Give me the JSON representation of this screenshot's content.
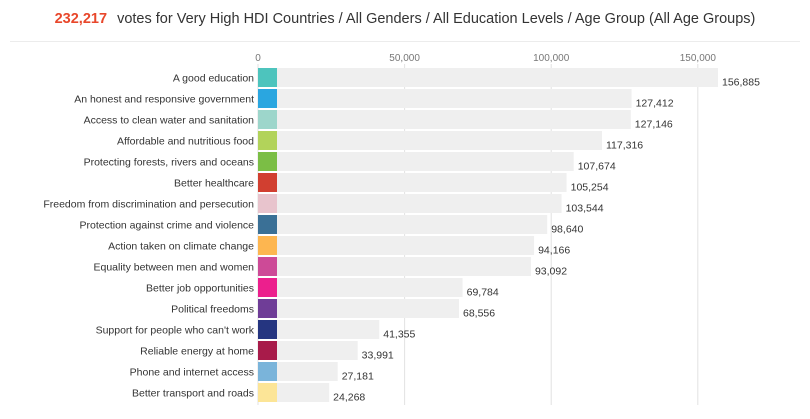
{
  "header": {
    "total_votes": "232,217",
    "caption": "votes for Very High HDI Countries / All Genders / All Education Levels / Age Group (All Age Groups)"
  },
  "chart_data": {
    "type": "bar",
    "orientation": "horizontal",
    "xlim": [
      0,
      156885
    ],
    "ticks": [
      0,
      50000,
      100000,
      150000
    ],
    "tick_labels": [
      "0",
      "50,000",
      "100,000",
      "150,000"
    ],
    "grid": true,
    "categories": [
      "A good education",
      "An honest and responsive government",
      "Access to clean water and sanitation",
      "Affordable and nutritious food",
      "Protecting forests, rivers and oceans",
      "Better healthcare",
      "Freedom from discrimination and persecution",
      "Protection against crime and violence",
      "Action taken on climate change",
      "Equality between men and women",
      "Better job opportunities",
      "Political freedoms",
      "Support for people who can't work",
      "Reliable energy at home",
      "Phone and internet access",
      "Better transport and roads"
    ],
    "values": [
      156885,
      127412,
      127146,
      117316,
      107674,
      105254,
      103544,
      98640,
      94166,
      93092,
      69784,
      68556,
      41355,
      33991,
      27181,
      24268
    ],
    "value_labels": [
      "156,885",
      "127,412",
      "127,146",
      "117,316",
      "107,674",
      "105,254",
      "103,544",
      "98,640",
      "94,166",
      "93,092",
      "69,784",
      "68,556",
      "41,355",
      "33,991",
      "27,181",
      "24,268"
    ],
    "colors": [
      "#4dc4bd",
      "#2aa6e0",
      "#9dd6cb",
      "#b2d35a",
      "#7bbe45",
      "#d13f30",
      "#e8c4cd",
      "#3a7096",
      "#fdb650",
      "#cd4a97",
      "#ec1f8d",
      "#6f3d97",
      "#253580",
      "#a81b4a",
      "#7ab4da",
      "#fce597"
    ],
    "bar_color": "#efefef"
  }
}
